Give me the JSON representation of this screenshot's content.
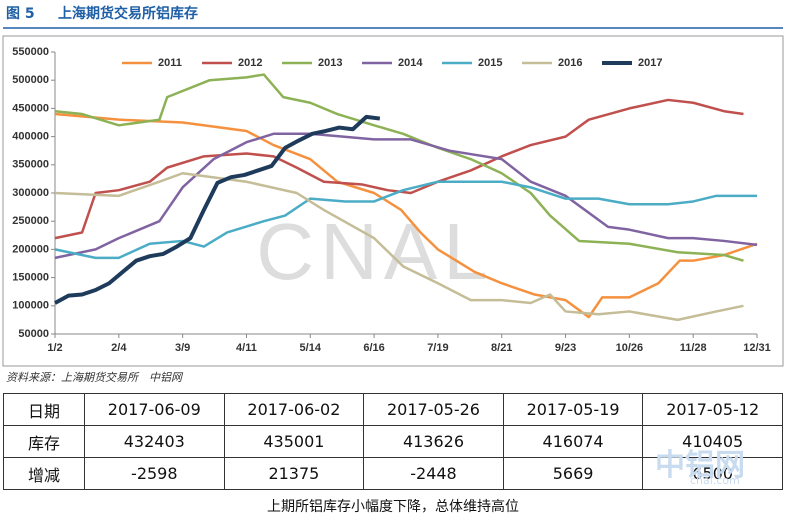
{
  "header": {
    "figure": "图 5",
    "title": "上海期货交易所铝库存"
  },
  "chart_data": {
    "type": "line",
    "xlim": [
      2,
      365
    ],
    "xticks": [
      {
        "value": 2,
        "label": "1/2"
      },
      {
        "value": 35,
        "label": "2/4"
      },
      {
        "value": 68,
        "label": "3/9"
      },
      {
        "value": 101,
        "label": "4/11"
      },
      {
        "value": 134,
        "label": "5/14"
      },
      {
        "value": 167,
        "label": "6/16"
      },
      {
        "value": 200,
        "label": "7/19"
      },
      {
        "value": 233,
        "label": "8/21"
      },
      {
        "value": 266,
        "label": "9/23"
      },
      {
        "value": 299,
        "label": "10/26"
      },
      {
        "value": 332,
        "label": "11/28"
      },
      {
        "value": 365,
        "label": "12/31"
      }
    ],
    "ylim": [
      50000,
      550000
    ],
    "yticks": [
      50000,
      100000,
      150000,
      200000,
      250000,
      300000,
      350000,
      400000,
      450000,
      500000,
      550000
    ],
    "watermark": "CNAL",
    "series": [
      {
        "name": "2011",
        "color": "#f5913e",
        "width": 2.5,
        "x": [
          2,
          35,
          68,
          101,
          115,
          134,
          148,
          167,
          181,
          191,
          200,
          219,
          233,
          250,
          266,
          278,
          285,
          299,
          314,
          325,
          332,
          348,
          365
        ],
        "values": [
          440000,
          430000,
          425000,
          410000,
          385000,
          360000,
          320000,
          300000,
          270000,
          230000,
          200000,
          160000,
          140000,
          120000,
          110000,
          80000,
          115000,
          115000,
          140000,
          180000,
          180000,
          190000,
          210000
        ]
      },
      {
        "name": "2012",
        "color": "#c0504d",
        "width": 2.5,
        "x": [
          2,
          16,
          23,
          35,
          51,
          60,
          79,
          101,
          115,
          127,
          141,
          161,
          174,
          186,
          200,
          217,
          233,
          248,
          266,
          278,
          299,
          319,
          332,
          348,
          358
        ],
        "values": [
          220000,
          230000,
          300000,
          305000,
          320000,
          345000,
          365000,
          370000,
          365000,
          345000,
          320000,
          315000,
          305000,
          300000,
          320000,
          340000,
          365000,
          385000,
          400000,
          430000,
          450000,
          465000,
          460000,
          445000,
          440000
        ]
      },
      {
        "name": "2013",
        "color": "#8db255",
        "width": 2.5,
        "x": [
          2,
          16,
          35,
          56,
          60,
          82,
          101,
          110,
          120,
          134,
          148,
          167,
          182,
          200,
          217,
          233,
          248,
          258,
          273,
          299,
          324,
          348,
          358
        ],
        "values": [
          445000,
          440000,
          420000,
          430000,
          470000,
          500000,
          505000,
          510000,
          470000,
          460000,
          440000,
          420000,
          405000,
          380000,
          360000,
          335000,
          300000,
          260000,
          215000,
          210000,
          195000,
          190000,
          180000
        ]
      },
      {
        "name": "2014",
        "color": "#8064a2",
        "width": 2.5,
        "x": [
          2,
          23,
          35,
          56,
          68,
          84,
          101,
          115,
          134,
          167,
          186,
          206,
          233,
          248,
          266,
          288,
          299,
          319,
          332,
          348,
          365
        ],
        "values": [
          185000,
          200000,
          220000,
          250000,
          310000,
          360000,
          390000,
          405000,
          405000,
          395000,
          395000,
          375000,
          360000,
          320000,
          295000,
          240000,
          235000,
          220000,
          220000,
          215000,
          208000
        ]
      },
      {
        "name": "2015",
        "color": "#4bacc6",
        "width": 2.5,
        "x": [
          2,
          23,
          35,
          51,
          68,
          79,
          91,
          110,
          121,
          134,
          152,
          167,
          182,
          200,
          233,
          248,
          266,
          283,
          299,
          319,
          332,
          344,
          365
        ],
        "values": [
          200000,
          185000,
          185000,
          210000,
          215000,
          205000,
          230000,
          250000,
          260000,
          290000,
          285000,
          285000,
          305000,
          320000,
          320000,
          310000,
          290000,
          290000,
          280000,
          280000,
          285000,
          295000,
          295000
        ]
      },
      {
        "name": "2016",
        "color": "#c4bd97",
        "width": 2.5,
        "x": [
          2,
          35,
          56,
          68,
          101,
          127,
          141,
          167,
          182,
          200,
          217,
          233,
          248,
          258,
          266,
          283,
          299,
          324,
          344,
          358
        ],
        "values": [
          300000,
          295000,
          320000,
          335000,
          320000,
          300000,
          270000,
          220000,
          170000,
          140000,
          110000,
          110000,
          105000,
          120000,
          90000,
          85000,
          90000,
          75000,
          90000,
          100000
        ]
      },
      {
        "name": "2017",
        "color": "#1f3b5c",
        "width": 4,
        "x": [
          2,
          9,
          16,
          23,
          30,
          37,
          44,
          51,
          58,
          65,
          72,
          79,
          86,
          93,
          100,
          107,
          114,
          121,
          128,
          135,
          142,
          149,
          156,
          163,
          170
        ],
        "values": [
          105000,
          118000,
          120000,
          128000,
          140000,
          160000,
          180000,
          188000,
          192000,
          205000,
          220000,
          270000,
          318000,
          328000,
          332000,
          340000,
          348000,
          380000,
          393000,
          405000,
          410000,
          416000,
          413000,
          435000,
          432000
        ]
      }
    ]
  },
  "source": "资料来源：上海期货交易所　中铝网",
  "table": {
    "header": [
      "日期",
      "2017-06-09",
      "2017-06-02",
      "2017-05-26",
      "2017-05-19",
      "2017-05-12"
    ],
    "rows": [
      [
        "库存",
        432403,
        435001,
        413626,
        416074,
        410405
      ],
      [
        "增减",
        -2598,
        21375,
        -2448,
        5669,
        6500
      ]
    ]
  },
  "watermark": {
    "name": "中铝网",
    "url": "cnal.com"
  },
  "caption": "上期所铝库存小幅度下降，总体维持高位"
}
